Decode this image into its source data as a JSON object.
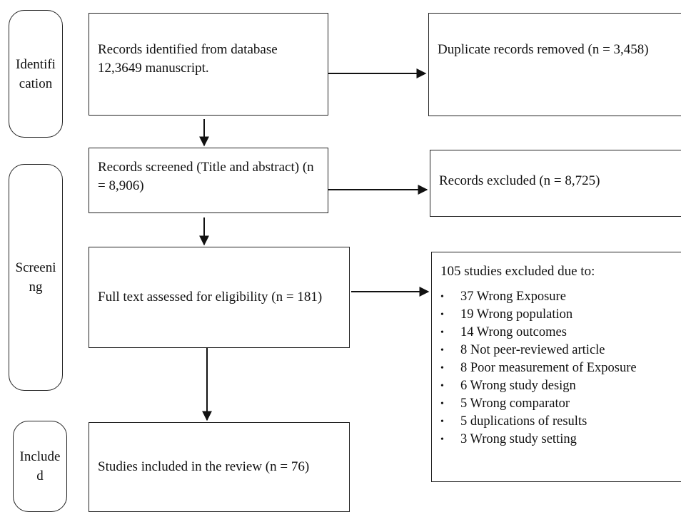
{
  "phases": {
    "identification": "Identification",
    "screening": "Screening",
    "included": "Included"
  },
  "boxes": {
    "records_identified": "Records identified from database 12,3649 manuscript.",
    "duplicates_removed": "Duplicate records removed (n = 3,458)",
    "records_screened": "Records screened (Title and abstract) (n = 8,906)",
    "records_excluded": "Records excluded (n = 8,725)",
    "full_text": "Full text assessed for eligibility (n = 181)",
    "studies_included": "Studies included in the review (n = 76)"
  },
  "exclusions": {
    "title": "105 studies excluded due to:",
    "reasons": [
      "37 Wrong Exposure",
      "19 Wrong population",
      "14 Wrong outcomes",
      "8 Not peer-reviewed article",
      "8 Poor measurement of Exposure",
      "6 Wrong study design",
      "5 Wrong comparator",
      "5 duplications of results",
      "3 Wrong study setting"
    ]
  }
}
